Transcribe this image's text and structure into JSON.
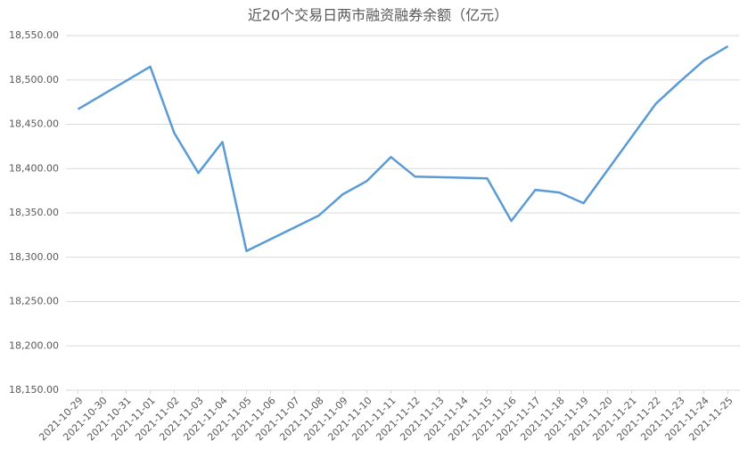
{
  "chart_data": {
    "type": "line",
    "title": "近20个交易日两市融资融券余额（亿元）",
    "x": [
      "2021-10-29",
      "2021-11-01",
      "2021-11-02",
      "2021-11-03",
      "2021-11-04",
      "2021-11-05",
      "2021-11-08",
      "2021-11-09",
      "2021-11-10",
      "2021-11-11",
      "2021-11-12",
      "2021-11-15",
      "2021-11-16",
      "2021-11-17",
      "2021-11-18",
      "2021-11-19",
      "2021-11-22",
      "2021-11-23",
      "2021-11-24",
      "2021-11-25"
    ],
    "series": [
      {
        "name": "两市融资融券余额",
        "color": "#5b9bd5",
        "values": [
          18467,
          18515,
          18440,
          18395,
          18430,
          18307,
          18347,
          18371,
          18386,
          18413,
          18391,
          18389,
          18341,
          18376,
          18373,
          18361,
          18473,
          18498,
          18522,
          18538
        ]
      }
    ],
    "xlim": [
      "2021-10-29",
      "2021-11-25"
    ],
    "xticks": [
      "2021-10-29",
      "2021-10-30",
      "2021-10-31",
      "2021-11-01",
      "2021-11-02",
      "2021-11-03",
      "2021-11-04",
      "2021-11-05",
      "2021-11-06",
      "2021-11-07",
      "2021-11-08",
      "2021-11-09",
      "2021-11-10",
      "2021-11-11",
      "2021-11-12",
      "2021-11-13",
      "2021-11-14",
      "2021-11-15",
      "2021-11-16",
      "2021-11-17",
      "2021-11-18",
      "2021-11-19",
      "2021-11-20",
      "2021-11-21",
      "2021-11-22",
      "2021-11-23",
      "2021-11-24",
      "2021-11-25"
    ],
    "ylim": [
      18150,
      18550
    ],
    "yticks": [
      {
        "value": 18150,
        "label": "18,150.00"
      },
      {
        "value": 18200,
        "label": "18,200.00"
      },
      {
        "value": 18250,
        "label": "18,250.00"
      },
      {
        "value": 18300,
        "label": "18,300.00"
      },
      {
        "value": 18350,
        "label": "18,350.00"
      },
      {
        "value": 18400,
        "label": "18,400.00"
      },
      {
        "value": 18450,
        "label": "18,450.00"
      },
      {
        "value": 18500,
        "label": "18,500.00"
      },
      {
        "value": 18550,
        "label": "18,550.00"
      }
    ],
    "grid": true
  }
}
